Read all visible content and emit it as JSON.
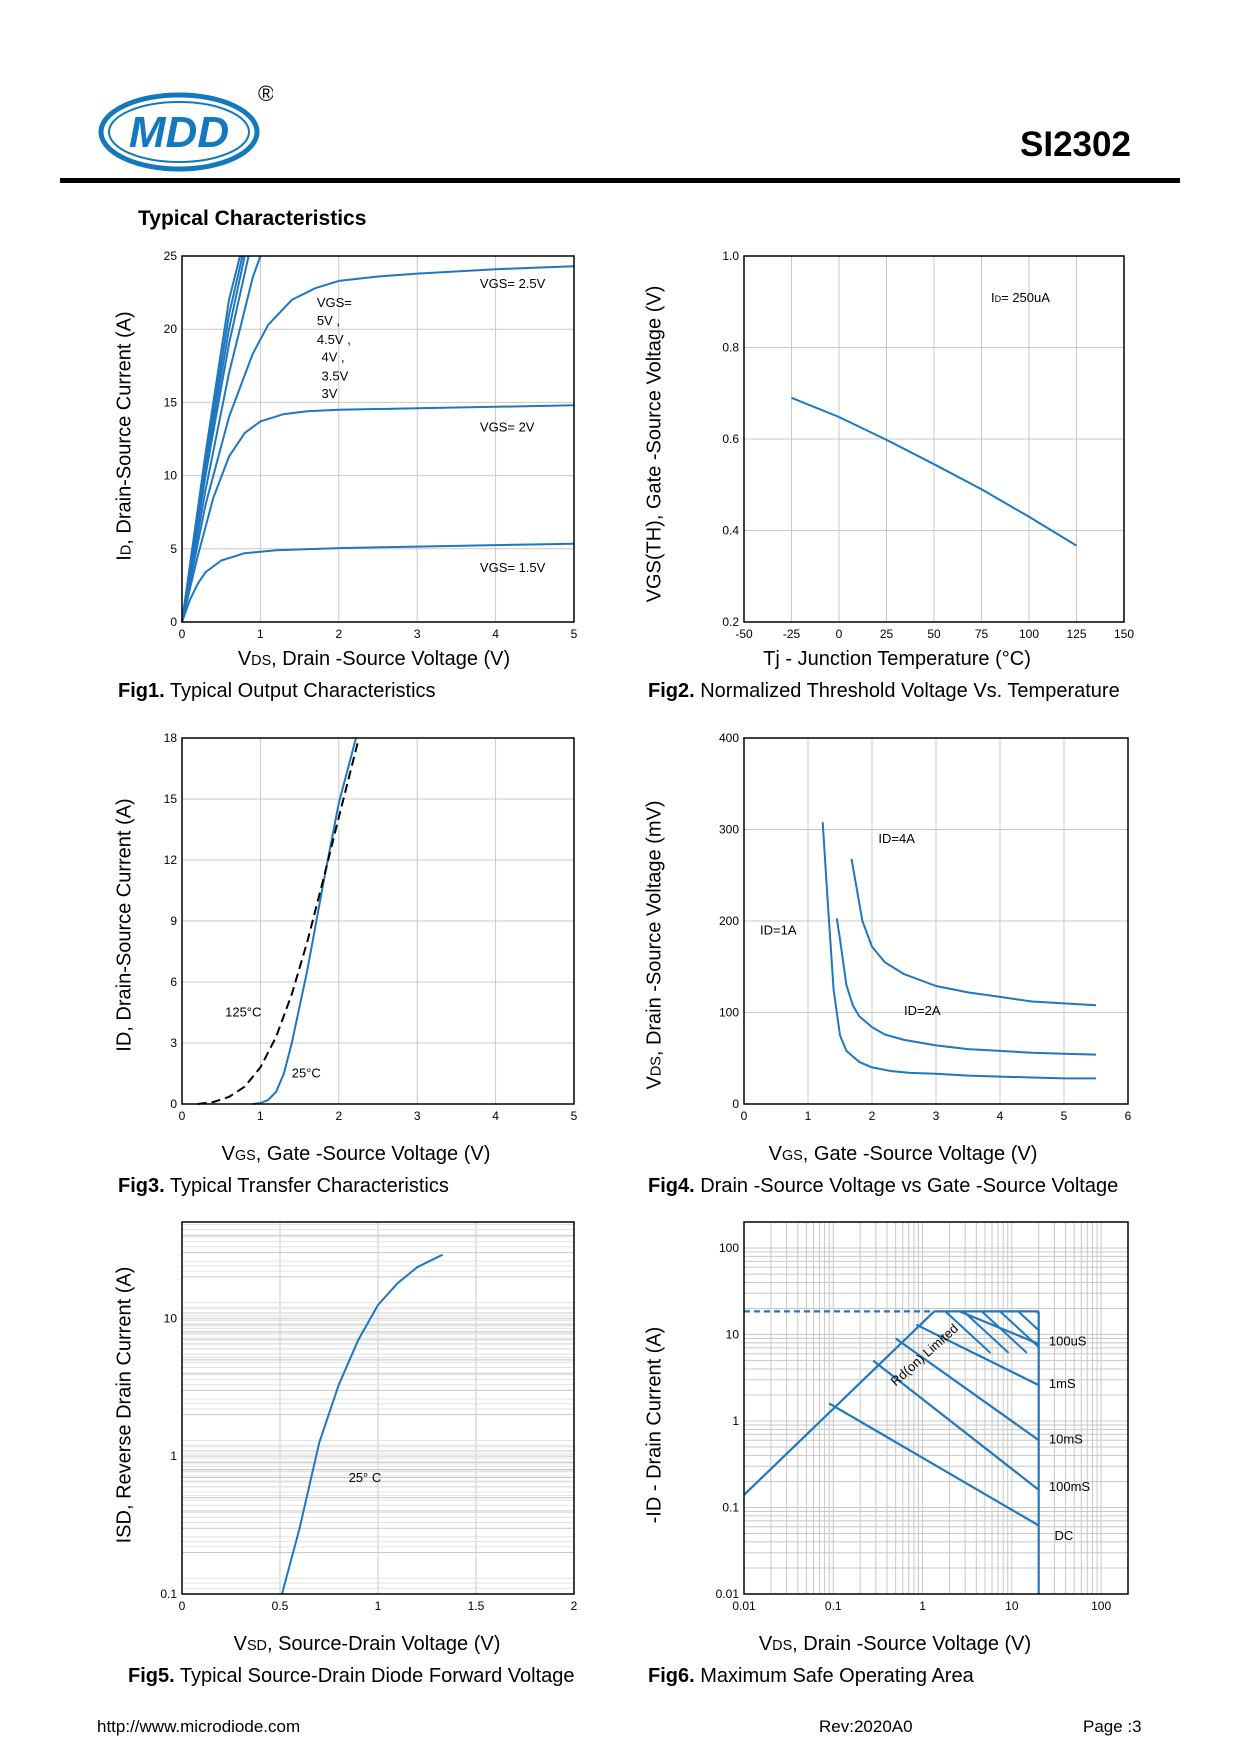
{
  "header": {
    "brand": "MDD",
    "registered": "®",
    "part_number": "SI2302"
  },
  "section_title": "Typical  Characteristics",
  "footer": {
    "url": "http://www.microdiode.com",
    "revision": "Rev:2020A0",
    "page": "Page :3"
  },
  "colors": {
    "curve": "#1f77c0",
    "grid": "#c8c8c8",
    "frame": "#000000",
    "logo_blue": "#1378bd"
  },
  "chart_data": [
    {
      "id": "fig1",
      "type": "line",
      "caption_num": "Fig1.",
      "caption_text": " Typical Output Characteristics",
      "xlabel_main": "V",
      "xlabel_sub": "DS",
      "xlabel_rest": ", Drain -Source Voltage (V)",
      "ylabel_main": "I",
      "ylabel_sub": "D",
      "ylabel_rest": ", Drain-Source Current (A)",
      "xlim": [
        0,
        5
      ],
      "ylim": [
        0,
        25
      ],
      "xticks": [
        0,
        1,
        2,
        3,
        4,
        5
      ],
      "yticks": [
        0,
        5,
        10,
        15,
        20,
        25
      ],
      "annotations": [
        {
          "text": "VGS= 2.5V",
          "x": 3.8,
          "y": 22.8
        },
        {
          "text": "VGS=",
          "x": 1.72,
          "y": 21.5
        },
        {
          "text": "5V ,",
          "x": 1.72,
          "y": 20.3
        },
        {
          "text": "4.5V ,",
          "x": 1.72,
          "y": 19.0
        },
        {
          "text": "4V ,",
          "x": 1.78,
          "y": 17.8
        },
        {
          "text": "3.5V",
          "x": 1.78,
          "y": 16.5
        },
        {
          "text": "3V",
          "x": 1.78,
          "y": 15.3
        },
        {
          "text": "VGS= 2V",
          "x": 3.8,
          "y": 13.0
        },
        {
          "text": "VGS= 1.5V",
          "x": 3.8,
          "y": 3.4
        }
      ],
      "series": [
        {
          "name": "VGS=1.5V",
          "x": [
            0,
            0.1,
            0.2,
            0.3,
            0.5,
            0.8,
            1.2,
            2,
            3,
            4,
            5
          ],
          "y": [
            0,
            1.5,
            2.6,
            3.4,
            4.2,
            4.7,
            4.9,
            5.05,
            5.15,
            5.25,
            5.35
          ]
        },
        {
          "name": "VGS=2V",
          "x": [
            0,
            0.2,
            0.4,
            0.6,
            0.8,
            1.0,
            1.3,
            1.6,
            2,
            3,
            4,
            5
          ],
          "y": [
            0,
            4.5,
            8.5,
            11.3,
            12.9,
            13.7,
            14.2,
            14.4,
            14.5,
            14.6,
            14.7,
            14.8
          ]
        },
        {
          "name": "VGS=2.5V",
          "x": [
            0,
            0.3,
            0.6,
            0.9,
            1.1,
            1.4,
            1.7,
            2,
            2.5,
            3,
            4,
            5
          ],
          "y": [
            0,
            8,
            14,
            18.3,
            20.3,
            22.0,
            22.8,
            23.3,
            23.6,
            23.8,
            24.1,
            24.3
          ]
        },
        {
          "name": "VGS=3V",
          "x": [
            0,
            0.3,
            0.6,
            0.9,
            1.0
          ],
          "y": [
            0,
            9,
            17,
            23.5,
            25
          ]
        },
        {
          "name": "VGS=3.5V",
          "x": [
            0,
            0.3,
            0.6,
            0.85
          ],
          "y": [
            0,
            10,
            19,
            25
          ]
        },
        {
          "name": "VGS=4V",
          "x": [
            0,
            0.3,
            0.6,
            0.8
          ],
          "y": [
            0,
            10.5,
            20,
            25
          ]
        },
        {
          "name": "VGS=4.5V",
          "x": [
            0,
            0.3,
            0.6,
            0.77
          ],
          "y": [
            0,
            11,
            21,
            25
          ]
        },
        {
          "name": "VGS=5V",
          "x": [
            0,
            0.3,
            0.6,
            0.74
          ],
          "y": [
            0,
            11.5,
            22,
            25
          ]
        }
      ]
    },
    {
      "id": "fig2",
      "type": "line",
      "caption_num": "Fig2.",
      "caption_text": " Normalized Threshold Voltage Vs. Temperature",
      "xlabel_main": "Tj - Junction Temperature (°C)",
      "xlabel_sub": "",
      "xlabel_rest": "",
      "ylabel_main": "VGS(TH), Gate -Source Voltage (V)",
      "ylabel_sub": "",
      "ylabel_rest": "",
      "xlim": [
        -50,
        150
      ],
      "ylim": [
        0.2,
        1.0
      ],
      "xticks": [
        -50,
        -25,
        0,
        25,
        50,
        75,
        100,
        125,
        150
      ],
      "yticks": [
        0.2,
        0.4,
        0.6,
        0.8,
        1.0
      ],
      "ytick_labels": [
        "0.2",
        "0.4",
        "0.6",
        "0.8",
        "1.0"
      ],
      "annotations": [
        {
          "text": "I",
          "sub": "D",
          "rest": "= 250uA",
          "x": 80,
          "y": 0.9
        }
      ],
      "series": [
        {
          "name": "VGS(TH)",
          "x": [
            -25,
            0,
            25,
            50,
            75,
            100,
            125
          ],
          "y": [
            0.69,
            0.648,
            0.598,
            0.545,
            0.49,
            0.43,
            0.367
          ]
        }
      ]
    },
    {
      "id": "fig3",
      "type": "line",
      "caption_num": "Fig3.",
      "caption_text": " Typical Transfer Characteristics",
      "xlabel_main": "V",
      "xlabel_sub": "GS",
      "xlabel_rest": ", Gate -Source Voltage (V)",
      "ylabel_main": "ID, Drain-Source Current (A)",
      "ylabel_sub": "",
      "ylabel_rest": "",
      "xlim": [
        0,
        5
      ],
      "ylim": [
        0,
        18
      ],
      "xticks": [
        0,
        1,
        2,
        3,
        4,
        5
      ],
      "yticks": [
        0,
        3,
        6,
        9,
        12,
        15,
        18
      ],
      "annotations": [
        {
          "text": "125°C",
          "x": 0.55,
          "y": 4.3
        },
        {
          "text": "25°C",
          "x": 1.4,
          "y": 1.3
        }
      ],
      "series": [
        {
          "name": "25°C",
          "dash": false,
          "x": [
            0.9,
            1.0,
            1.1,
            1.2,
            1.3,
            1.4,
            1.6,
            1.8,
            2.0,
            2.22
          ],
          "y": [
            0,
            0.05,
            0.2,
            0.6,
            1.5,
            3.0,
            6.6,
            10.8,
            14.8,
            18
          ]
        },
        {
          "name": "125°C",
          "dash": true,
          "x": [
            0.2,
            0.4,
            0.6,
            0.8,
            1.0,
            1.2,
            1.4,
            1.6,
            1.8,
            2.0,
            2.25
          ],
          "y": [
            0,
            0.1,
            0.35,
            0.85,
            1.8,
            3.3,
            5.4,
            8.0,
            11.0,
            14.1,
            17.9
          ]
        }
      ]
    },
    {
      "id": "fig4",
      "type": "line",
      "caption_num": "Fig4.",
      "caption_text": " Drain -Source Voltage vs Gate -Source Voltage",
      "xlabel_main": "V",
      "xlabel_sub": "GS",
      "xlabel_rest": ", Gate -Source Voltage (V)",
      "ylabel_main": "V",
      "ylabel_sub": "DS",
      "ylabel_rest": ", Drain -Source Voltage (mV)",
      "xlim": [
        0,
        6
      ],
      "ylim": [
        0,
        400
      ],
      "xticks": [
        0,
        1,
        2,
        3,
        4,
        5,
        6
      ],
      "yticks": [
        0,
        100,
        200,
        300,
        400
      ],
      "annotations": [
        {
          "text": "ID=4A",
          "x": 2.1,
          "y": 285
        },
        {
          "text": "ID=1A",
          "x": 0.25,
          "y": 185
        },
        {
          "text": "ID=2A",
          "x": 2.5,
          "y": 97
        }
      ],
      "series": [
        {
          "name": "ID=1A",
          "x": [
            1.23,
            1.3,
            1.4,
            1.5,
            1.6,
            1.8,
            2.0,
            2.3,
            2.6,
            3,
            3.5,
            4,
            4.5,
            5,
            5.5
          ],
          "y": [
            308,
            230,
            125,
            75,
            58,
            46,
            40,
            36,
            34,
            33,
            31,
            30,
            29,
            28,
            28
          ]
        },
        {
          "name": "ID=2A",
          "x": [
            1.45,
            1.5,
            1.6,
            1.7,
            1.8,
            2.0,
            2.2,
            2.5,
            3,
            3.5,
            4,
            4.5,
            5,
            5.5
          ],
          "y": [
            203,
            180,
            130,
            108,
            96,
            84,
            76,
            70,
            64,
            60,
            58,
            56,
            55,
            54
          ]
        },
        {
          "name": "ID=4A",
          "x": [
            1.68,
            1.75,
            1.85,
            2.0,
            2.2,
            2.5,
            3,
            3.5,
            4,
            4.5,
            5,
            5.5
          ],
          "y": [
            268,
            240,
            200,
            172,
            155,
            142,
            129,
            122,
            117,
            112,
            110,
            108
          ]
        }
      ]
    },
    {
      "id": "fig5",
      "type": "line",
      "caption_num": "Fig5.",
      "caption_text": " Typical Source-Drain Diode Forward Voltage",
      "xlabel_main": "V",
      "xlabel_sub": "SD",
      "xlabel_rest": ", Source-Drain Voltage (V)",
      "ylabel_main": "ISD, Reverse Drain Current (A)",
      "ylabel_sub": "",
      "ylabel_rest": "",
      "xlim": [
        0,
        2
      ],
      "ylim": [
        0.1,
        50
      ],
      "yscale": "log",
      "xticks": [
        0,
        0.5,
        1,
        1.5,
        2
      ],
      "xtick_labels": [
        "0",
        "0.5",
        "1",
        "1.5",
        "2"
      ],
      "yticks": [
        0.1,
        1,
        10
      ],
      "ytick_labels": [
        "0.1",
        "1",
        "10"
      ],
      "annotations": [
        {
          "text": "25° C",
          "x": 0.85,
          "y": 0.65
        }
      ],
      "series": [
        {
          "name": "25°C",
          "x": [
            0.51,
            0.6,
            0.7,
            0.8,
            0.9,
            1.0,
            1.1,
            1.2,
            1.33
          ],
          "y": [
            0.1,
            0.3,
            1.25,
            3.3,
            7.0,
            12.5,
            18,
            23.5,
            29
          ]
        }
      ]
    },
    {
      "id": "fig6",
      "type": "line",
      "caption_num": "Fig6.",
      "caption_text": " Maximum Safe Operating Area",
      "xlabel_main": "V",
      "xlabel_sub": "DS",
      "xlabel_rest": ", Drain -Source Voltage (V)",
      "ylabel_main": "-ID - Drain Current (A)",
      "ylabel_sub": "",
      "ylabel_rest": "",
      "xlim": [
        0.01,
        200
      ],
      "ylim": [
        0.01,
        200
      ],
      "xscale": "log",
      "yscale": "log",
      "xticks": [
        0.01,
        0.1,
        1,
        10,
        100
      ],
      "xtick_labels": [
        "0.01",
        "0.1",
        "1",
        "10",
        "100"
      ],
      "yticks": [
        0.01,
        0.1,
        1,
        10,
        100
      ],
      "ytick_labels": [
        "0.01",
        "0.1",
        "1",
        "10",
        "100"
      ],
      "rds_label": "Rd(on) Limited",
      "annotations": [
        {
          "text": "100uS",
          "x": 26,
          "y": 7.5
        },
        {
          "text": "1mS",
          "x": 26,
          "y": 2.4
        },
        {
          "text": "10mS",
          "x": 26,
          "y": 0.55
        },
        {
          "text": "100mS",
          "x": 26,
          "y": 0.155
        },
        {
          "text": "DC",
          "x": 30,
          "y": 0.042
        }
      ],
      "series": [
        {
          "name": "Rds(on) limit",
          "x": [
            0.01,
            1.35
          ],
          "y": [
            0.14,
            18.5
          ]
        },
        {
          "name": "Current limit (dashed)",
          "dash": true,
          "x": [
            0.01,
            1.35
          ],
          "y": [
            18.5,
            18.5
          ]
        },
        {
          "name": "Current limit",
          "x": [
            1.35,
            20
          ],
          "y": [
            18.5,
            18.5
          ]
        },
        {
          "name": "Voltage limit",
          "x": [
            20,
            20
          ],
          "y": [
            0.01,
            18.5
          ]
        },
        {
          "name": "100uS",
          "x": [
            2.6,
            20
          ],
          "y": [
            18.5,
            7.8
          ]
        },
        {
          "name": "1mS",
          "x": [
            0.85,
            20
          ],
          "y": [
            13,
            2.6
          ]
        },
        {
          "name": "10mS",
          "x": [
            0.5,
            20
          ],
          "y": [
            9,
            0.6
          ]
        },
        {
          "name": "100mS",
          "x": [
            0.28,
            20
          ],
          "y": [
            5.0,
            0.16
          ]
        },
        {
          "name": "DC",
          "x": [
            0.09,
            20
          ],
          "y": [
            1.6,
            0.062
          ]
        }
      ]
    }
  ]
}
